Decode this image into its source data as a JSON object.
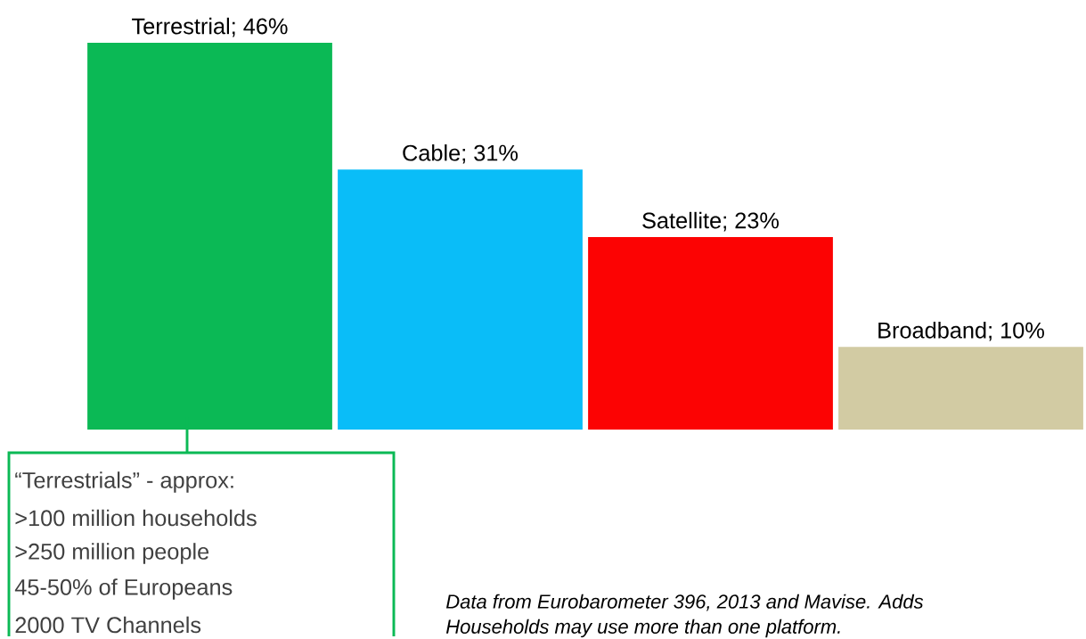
{
  "chart_data": {
    "type": "bar",
    "categories": [
      null,
      null,
      null,
      null
    ],
    "values": [
      46,
      31,
      23,
      10
    ],
    "colors": [
      "#0bb955",
      "#0abdf8",
      "#fc0303",
      "#d2cba3"
    ],
    "value_labels": [
      "Terrestrial; 46%",
      "Cable; 31%",
      "Satellite; 23%",
      "Broadband; 10%"
    ],
    "annotations": [
      "“Terrestrials” - approx:",
      ">100 million households",
      ">250 million people",
      "45-50% of Europeans",
      "2000 TV Channels",
      "Data from Eurobarometer 396, 2013 and Mavise. Adds",
      "Households may use more than one platform."
    ]
  }
}
